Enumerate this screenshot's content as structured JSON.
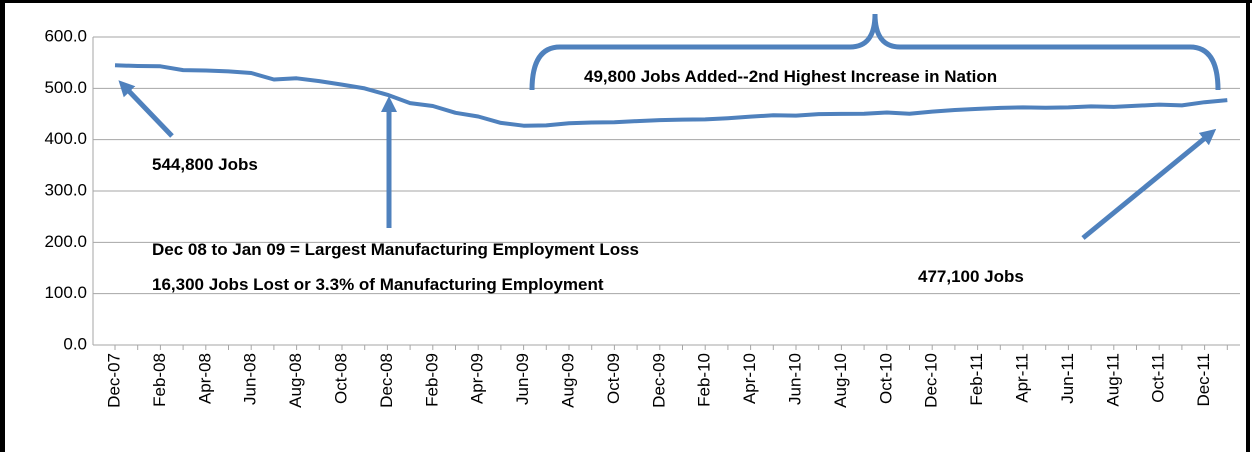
{
  "chart_data": {
    "type": "line",
    "categories": [
      "Dec-07",
      null,
      "Feb-08",
      null,
      "Apr-08",
      null,
      "Jun-08",
      null,
      "Aug-08",
      null,
      "Oct-08",
      null,
      "Dec-08",
      null,
      "Feb-09",
      null,
      "Apr-09",
      null,
      "Jun-09",
      null,
      "Aug-09",
      null,
      "Oct-09",
      null,
      "Dec-09",
      null,
      "Feb-10",
      null,
      "Apr-10",
      null,
      "Jun-10",
      null,
      "Aug-10",
      null,
      "Oct-10",
      null,
      "Dec-10",
      null,
      "Feb-11",
      null,
      "Apr-11",
      null,
      "Jun-11",
      null,
      "Aug-11",
      null,
      "Oct-11",
      null,
      "Dec-11",
      null
    ],
    "values": [
      544.8,
      543.5,
      542.9,
      535.5,
      534.8,
      533.0,
      529.9,
      517.3,
      519.5,
      514.0,
      507.2,
      499.8,
      487.5,
      471.2,
      465.5,
      452.4,
      445.1,
      432.6,
      427.3,
      427.8,
      432.0,
      433.5,
      434.0,
      436.2,
      438.1,
      439.0,
      439.5,
      441.8,
      445.0,
      447.4,
      446.8,
      449.9,
      450.2,
      450.5,
      453.0,
      450.4,
      454.7,
      457.8,
      459.9,
      461.8,
      462.8,
      462.3,
      462.8,
      464.9,
      463.8,
      466.0,
      468.3,
      466.8,
      473.0,
      477.1
    ],
    "color": "#4f81bd",
    "ylim": [
      0,
      600
    ],
    "yticks": [
      {
        "value": 0,
        "label": "0.0"
      },
      {
        "value": 100,
        "label": "100.0"
      },
      {
        "value": 200,
        "label": "200.0"
      },
      {
        "value": 300,
        "label": "300.0"
      },
      {
        "value": 400,
        "label": "400.0"
      },
      {
        "value": 500,
        "label": "500.0"
      },
      {
        "value": 600,
        "label": "600.0"
      }
    ],
    "grid": true,
    "annotations": [
      "544,800 Jobs",
      "Dec 08 to Jan 09 = Largest Manufacturing Employment Loss",
      "16,300 Jobs Lost or 3.3% of Manufacturing Employment",
      "49,800 Jobs Added--2nd Highest Increase in Nation",
      "477,100 Jobs"
    ]
  }
}
